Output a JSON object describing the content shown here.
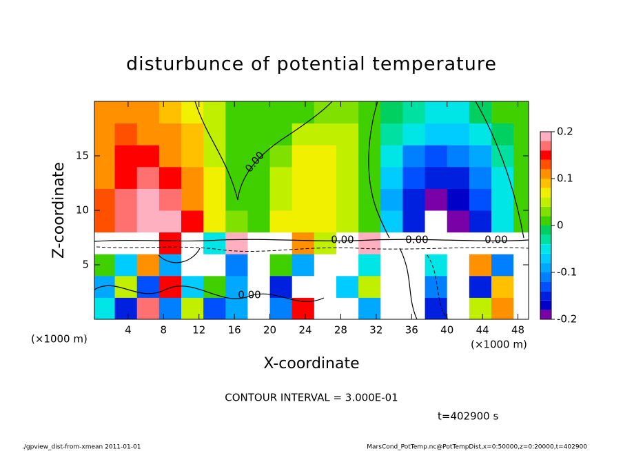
{
  "chart_data": {
    "type": "heatmap",
    "title": "disturbunce of potential temperature",
    "x_label": "X-coordinate",
    "y_label": "Z-coordinate",
    "x_unit_label": "(×1000 m)",
    "y_unit_label": "(×1000 m)",
    "contour_interval": "CONTOUR INTERVAL = 3.000E-01",
    "time_label": "t=402900 s",
    "footer_left": "./gpview_dist-from-xmean  2011-01-01",
    "footer_right": "MarsCond_PotTemp.nc@PotTempDist,x=0:50000,z=0:20000,t=402900",
    "contour_labels": [
      {
        "value": 0,
        "label": "0.00"
      },
      {
        "value": 0,
        "label": "0.00"
      },
      {
        "value": 0,
        "label": "0.00"
      },
      {
        "value": 0,
        "label": "0.00"
      },
      {
        "value": 0,
        "label": "0.00"
      }
    ],
    "xlim": [
      0.2,
      49.2
    ],
    "ylim": [
      0,
      20
    ],
    "xticks": [
      4,
      8,
      12,
      16,
      20,
      24,
      28,
      32,
      36,
      40,
      44,
      48
    ],
    "yticks": [
      5,
      10,
      15
    ],
    "x": [
      1.25,
      3.75,
      6.25,
      8.75,
      11.25,
      13.75,
      16.25,
      18.75,
      21.25,
      23.75,
      26.25,
      28.75,
      31.25,
      33.75,
      36.25,
      38.75,
      41.25,
      43.75,
      46.25,
      48.75
    ],
    "z": [
      1,
      3,
      5,
      7,
      9,
      11,
      13,
      15,
      17,
      19
    ],
    "values": [
      [
        -0.05,
        -0.15,
        0.16,
        -0.12,
        0.05,
        -0.14,
        -0.1,
        0.3,
        -0.12,
        0.15,
        0.3,
        0.3,
        -0.1,
        0.3,
        0.3,
        -0.16,
        0.3,
        0.05,
        0.1,
        0.3
      ],
      [
        -0.1,
        0.05,
        -0.14,
        0.14,
        -0.08,
        0.02,
        -0.1,
        0.3,
        -0.15,
        0.25,
        0.3,
        -0.08,
        0.04,
        0.3,
        0.3,
        -0.12,
        0.3,
        -0.15,
        0.08,
        0.3
      ],
      [
        0.02,
        -0.08,
        0.12,
        -0.1,
        0.3,
        0.25,
        -0.12,
        0.3,
        0.02,
        -0.1,
        0.25,
        0.3,
        -0.05,
        0.3,
        0.3,
        -0.05,
        0.3,
        0.1,
        -0.12,
        0.3
      ],
      [
        0.3,
        0.25,
        0.3,
        0.15,
        0.25,
        -0.05,
        0.2,
        0.3,
        0.25,
        0.1,
        0.05,
        0.3,
        0.2,
        0.3,
        0.25,
        0.3,
        0.3,
        0.25,
        0.3,
        0.3
      ],
      [
        0.13,
        0.16,
        0.19,
        0.19,
        0.14,
        0.07,
        0.03,
        0.02,
        0.06,
        0.07,
        0.07,
        0.05,
        0.02,
        -0.08,
        -0.15,
        -0.25,
        -0.2,
        -0.15,
        -0.04,
        0
      ],
      [
        0.13,
        0.16,
        0.18,
        0.17,
        0.12,
        0.06,
        0.02,
        0.01,
        0.05,
        0.07,
        0.07,
        0.05,
        0.02,
        -0.09,
        -0.16,
        -0.19,
        -0.18,
        -0.14,
        -0.05,
        0
      ],
      [
        0.12,
        0.15,
        0.16,
        0.15,
        0.11,
        0.06,
        0.02,
        0,
        0.04,
        0.06,
        0.07,
        0.05,
        0.02,
        -0.08,
        -0.14,
        -0.16,
        -0.15,
        -0.12,
        -0.05,
        0
      ],
      [
        0.12,
        0.14,
        0.14,
        0.12,
        0.09,
        0.05,
        0.02,
        0,
        0.03,
        0.06,
        0.06,
        0.05,
        0.02,
        -0.06,
        -0.11,
        -0.13,
        -0.12,
        -0.09,
        -0.03,
        0
      ],
      [
        0.12,
        0.13,
        0.12,
        0.1,
        0.08,
        0.05,
        0.02,
        0,
        0.02,
        0.04,
        0.05,
        0.04,
        0.02,
        -0.03,
        -0.06,
        -0.07,
        -0.07,
        -0.05,
        -0.01,
        0.01
      ],
      [
        0.12,
        0.12,
        0.11,
        0.09,
        0.07,
        0.05,
        0.02,
        0,
        0,
        0.02,
        0.03,
        0.03,
        0.02,
        -0.01,
        -0.03,
        -0.04,
        -0.04,
        -0.02,
        0,
        0.01
      ]
    ],
    "clim": [
      -0.2,
      0.2
    ],
    "cticks": [
      0.2,
      0.1,
      0,
      -0.1,
      -0.2
    ],
    "colors": [
      "#7a00a8",
      "#0000c8",
      "#0020e0",
      "#0050ff",
      "#0080ff",
      "#00a8ff",
      "#00ccff",
      "#00e6e6",
      "#00e0a0",
      "#00d060",
      "#40d000",
      "#80e000",
      "#c0f000",
      "#f0f000",
      "#ffc000",
      "#ff9000",
      "#ff5000",
      "#ff0000",
      "#ff7070",
      "#ffb0c0"
    ],
    "out_of_range_color": "#ffffff"
  }
}
